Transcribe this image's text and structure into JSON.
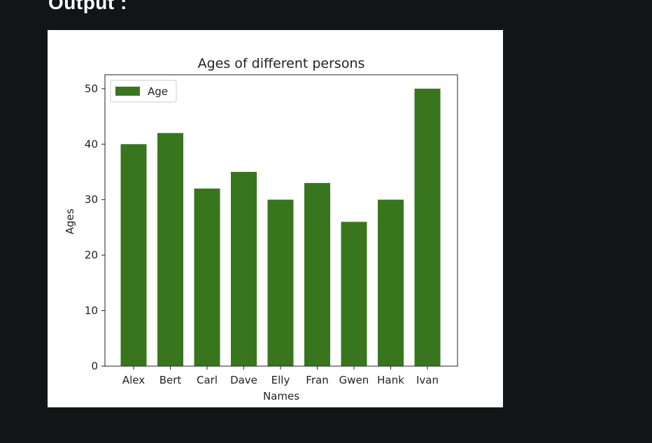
{
  "page": {
    "heading": "Output :"
  },
  "chart_data": {
    "type": "bar",
    "title": "Ages of different persons",
    "xlabel": "Names",
    "ylabel": "Ages",
    "categories": [
      "Alex",
      "Bert",
      "Carl",
      "Dave",
      "Elly",
      "Fran",
      "Gwen",
      "Hank",
      "Ivan"
    ],
    "series": [
      {
        "name": "Age",
        "values": [
          40,
          42,
          32,
          35,
          30,
          33,
          26,
          30,
          50
        ],
        "color": "#38761d"
      }
    ],
    "ylim": [
      0,
      52.5
    ],
    "yticks": [
      0,
      10,
      20,
      30,
      40,
      50
    ],
    "grid": false,
    "legend_position": "top-left"
  }
}
